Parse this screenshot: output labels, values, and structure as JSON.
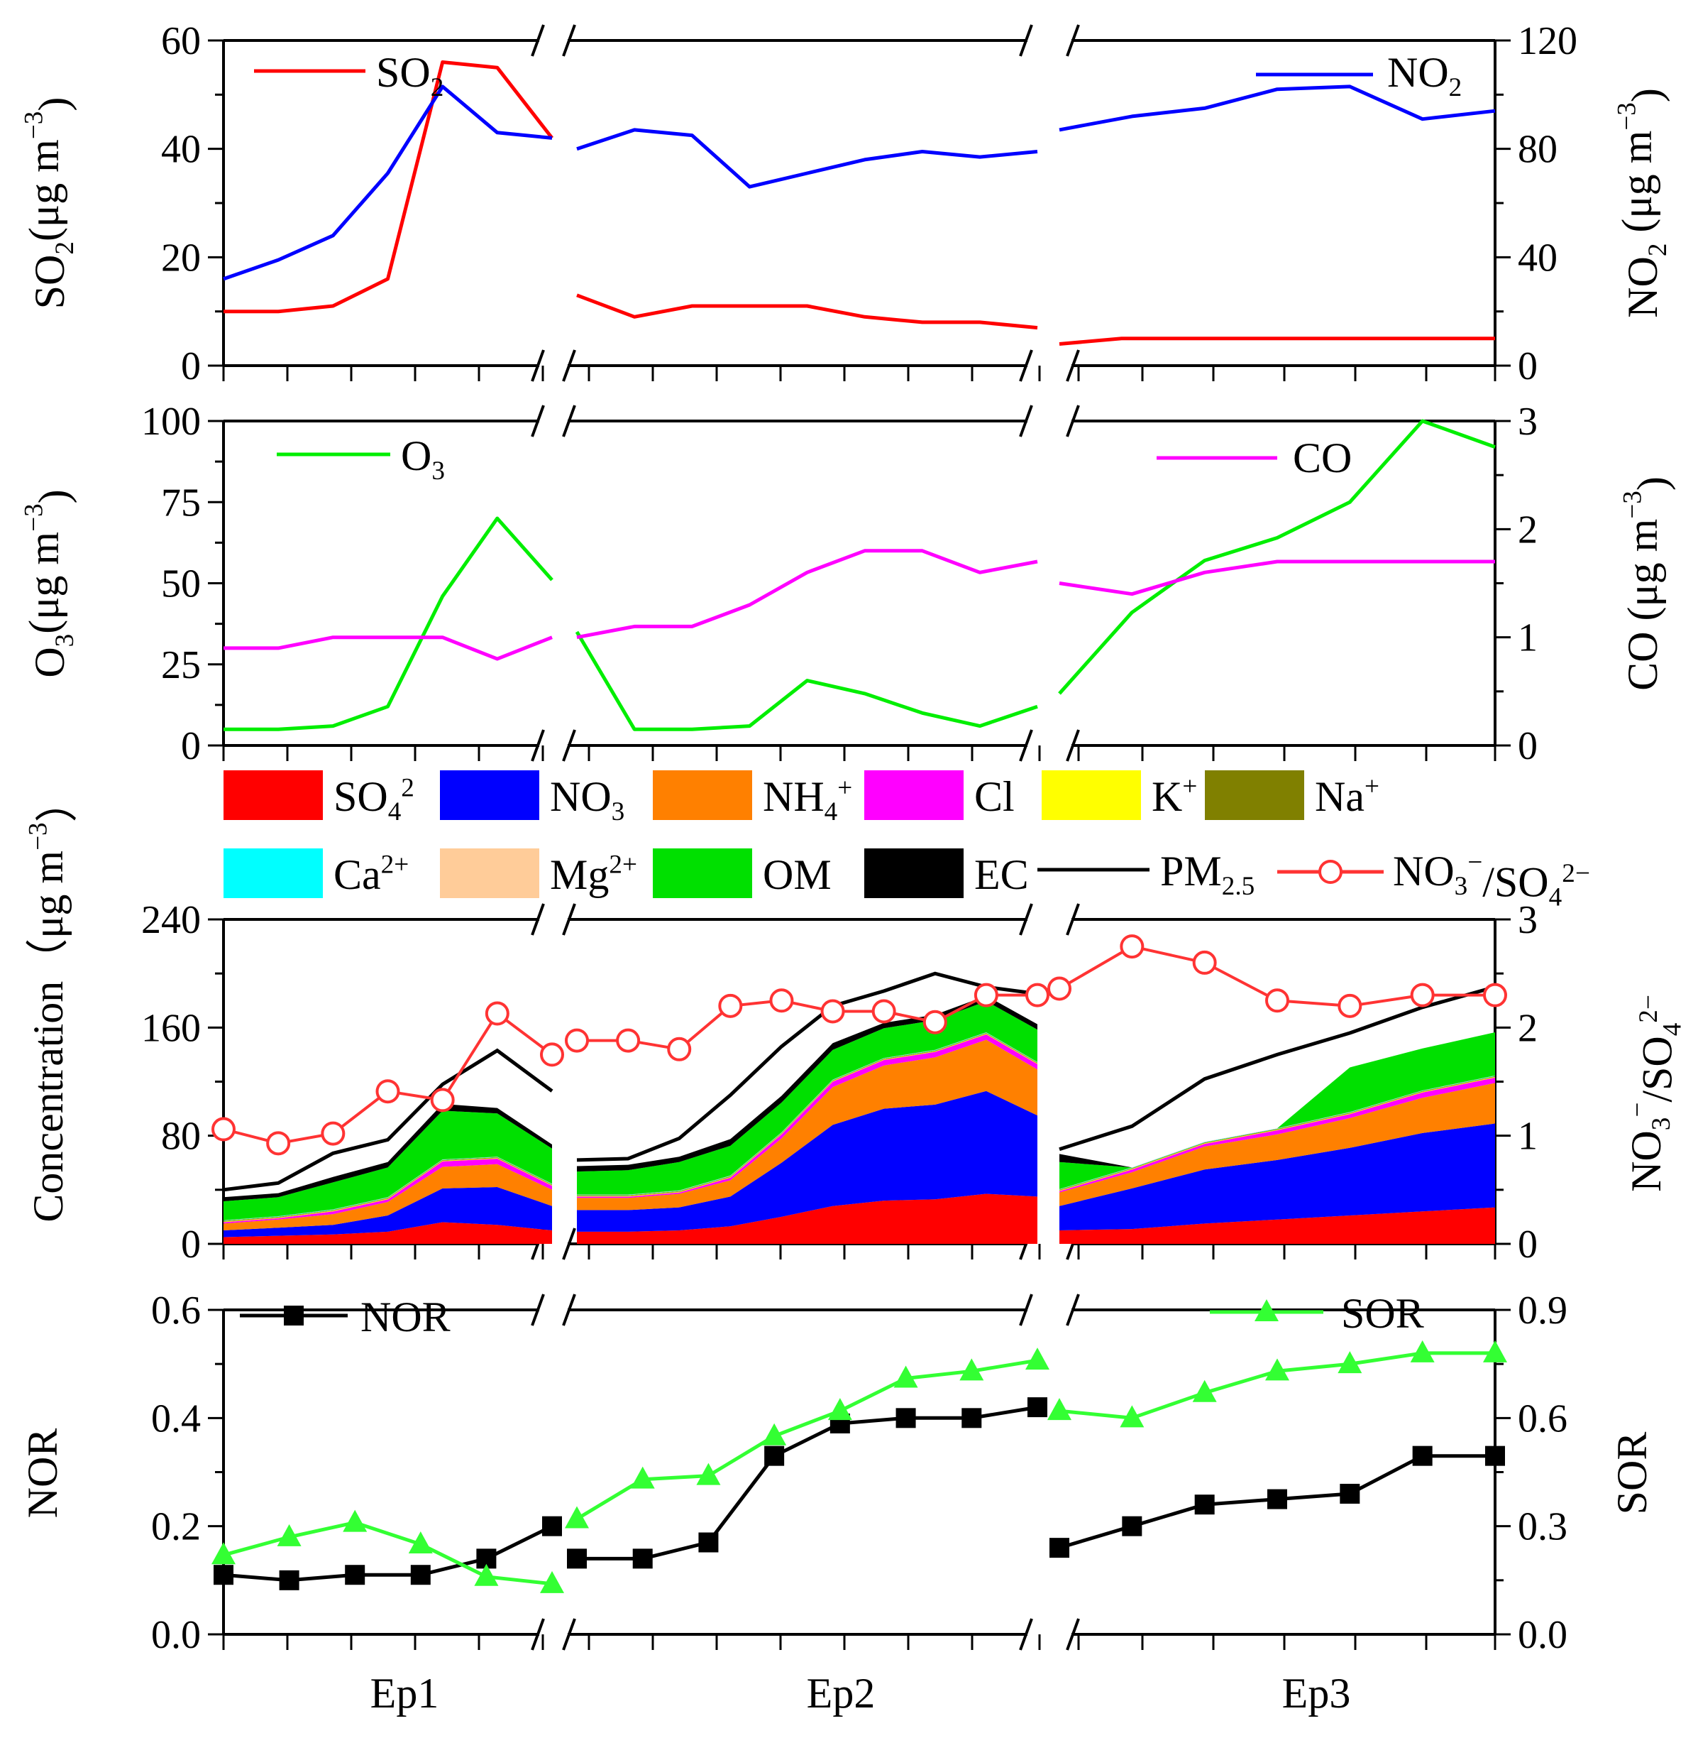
{
  "colors": {
    "so2": "#ff0000",
    "no2": "#0000ff",
    "o3": "#00ee00",
    "co": "#ff00ff",
    "so4": "#ff0000",
    "no3": "#0000ff",
    "nh4": "#ff8000",
    "cl": "#ff00ff",
    "k": "#ffff00",
    "na": "#808000",
    "ca": "#00ffff",
    "mg": "#ffcc99",
    "om": "#00e000",
    "ec": "#000000",
    "pm25": "#000000",
    "ratio": "#ff3333",
    "nor": "#000000",
    "sor": "#33ff33"
  },
  "categories": [
    "Ep1",
    "Ep2",
    "Ep3"
  ],
  "chart_data": [
    {
      "type": "line",
      "panel": "gas-so2-no2",
      "y_left": {
        "label": "SO2(μg m−3)",
        "ticks": [
          "0",
          "20",
          "40",
          "60"
        ],
        "range": [
          0,
          60
        ]
      },
      "y_right": {
        "label": "NO2 (μg m−3)",
        "ticks": [
          "0",
          "40",
          "80",
          "120"
        ],
        "range": [
          0,
          120
        ]
      },
      "series": [
        {
          "name": "SO2",
          "axis": "left",
          "segments": [
            [
              10,
              10,
              11,
              16,
              56,
              55,
              42
            ],
            [
              13,
              9,
              11,
              11,
              11,
              9,
              8,
              8,
              7
            ],
            [
              4,
              5,
              5,
              5,
              5,
              5,
              5,
              5
            ]
          ]
        },
        {
          "name": "NO2",
          "axis": "right",
          "segments": [
            [
              32,
              39,
              48,
              71,
              103,
              86,
              84
            ],
            [
              80,
              87,
              85,
              66,
              71,
              76,
              79,
              77,
              79
            ],
            [
              87,
              92,
              95,
              102,
              103,
              91,
              94
            ]
          ]
        }
      ],
      "legend": [
        {
          "label": "SO",
          "sub": "2"
        },
        {
          "label": "NO",
          "sub": "2"
        }
      ]
    },
    {
      "type": "line",
      "panel": "gas-o3-co",
      "y_left": {
        "label": "O3(μg m−3)",
        "ticks": [
          "0",
          "25",
          "50",
          "75",
          "100"
        ],
        "range": [
          0,
          100
        ]
      },
      "y_right": {
        "label": "CO (μg m−3)",
        "ticks": [
          "0",
          "1",
          "2",
          "3"
        ],
        "range": [
          0,
          3
        ]
      },
      "series": [
        {
          "name": "O3",
          "axis": "left",
          "segments": [
            [
              5,
              5,
              6,
              12,
              46,
              70,
              51
            ],
            [
              35,
              5,
              5,
              6,
              20,
              16,
              10,
              6,
              12
            ],
            [
              16,
              41,
              57,
              64,
              75,
              100,
              92
            ]
          ]
        },
        {
          "name": "CO",
          "axis": "right",
          "segments": [
            [
              0.9,
              0.9,
              1.0,
              1.0,
              1.0,
              0.8,
              1.0
            ],
            [
              1.0,
              1.1,
              1.1,
              1.3,
              1.6,
              1.8,
              1.8,
              1.6,
              1.7
            ],
            [
              1.5,
              1.4,
              1.6,
              1.7,
              1.7,
              1.7,
              1.7
            ]
          ]
        }
      ],
      "legend": [
        {
          "label": "O",
          "sub": "3"
        },
        {
          "label": "CO",
          "sub": ""
        }
      ]
    },
    {
      "type": "area",
      "panel": "composition",
      "y_left": {
        "label": "Concentration（μg m−3）",
        "ticks": [
          "0",
          "80",
          "160",
          "240"
        ],
        "range": [
          0,
          240
        ]
      },
      "y_right": {
        "label": "NO3−/SO42−",
        "ticks": [
          "0",
          "1",
          "2",
          "3"
        ],
        "range": [
          0,
          3
        ]
      },
      "legend": [
        {
          "key": "so4",
          "label": "SO",
          "sub": "4",
          "sup": "2"
        },
        {
          "key": "no3",
          "label": "NO",
          "sub": "3",
          "sup": ""
        },
        {
          "key": "nh4",
          "label": "NH",
          "sub": "4",
          "sup": "+"
        },
        {
          "key": "cl",
          "label": "Cl",
          "sub": "",
          "sup": ""
        },
        {
          "key": "k",
          "label": "K",
          "sub": "",
          "sup": "+"
        },
        {
          "key": "na",
          "label": "Na",
          "sub": "",
          "sup": "+"
        },
        {
          "key": "ca",
          "label": "Ca",
          "sub": "",
          "sup": "2+"
        },
        {
          "key": "mg",
          "label": "Mg",
          "sub": "",
          "sup": "2+"
        },
        {
          "key": "om",
          "label": "OM",
          "sub": "",
          "sup": ""
        },
        {
          "key": "ec",
          "label": "EC",
          "sub": "",
          "sup": ""
        },
        {
          "key": "pm25",
          "label": "PM",
          "sub": "2.5",
          "sup": ""
        },
        {
          "key": "ratio",
          "label": "NO",
          "sub": "3",
          "sup": "−",
          "tail": "/SO",
          "tail_sub": "4",
          "tail_sup": "2−"
        }
      ],
      "segments": [
        {
          "so4": [
            5,
            6,
            7,
            9,
            16,
            14,
            10
          ],
          "no3": [
            5,
            6,
            7,
            12,
            25,
            28,
            18
          ],
          "nh4": [
            5,
            6,
            8,
            10,
            16,
            17,
            12
          ],
          "cl": [
            1,
            1,
            2,
            2,
            4,
            4,
            3
          ],
          "k": [
            0.5,
            0.5,
            0.5,
            0.5,
            0.5,
            0.5,
            0.5
          ],
          "na": [
            0.5,
            0.5,
            0.5,
            0.5,
            0.5,
            0.5,
            0.5
          ],
          "ca": [
            0.3,
            0.3,
            0.3,
            0.3,
            0.3,
            0.3,
            0.3
          ],
          "mg": [
            0.2,
            0.2,
            0.2,
            0.2,
            0.2,
            0.2,
            0.2
          ],
          "om": [
            14,
            14,
            20,
            22,
            36,
            32,
            26
          ],
          "ec": [
            3,
            3,
            4,
            4,
            5,
            4,
            3
          ],
          "pm25": [
            40,
            45,
            67,
            77,
            118,
            143,
            113
          ],
          "ratio": [
            1.06,
            0.93,
            1.02,
            1.41,
            1.33,
            2.13,
            1.75
          ]
        },
        {
          "so4": [
            9,
            9,
            10,
            13,
            20,
            28,
            32,
            33,
            37,
            35
          ],
          "no3": [
            16,
            16,
            17,
            22,
            40,
            60,
            68,
            70,
            76,
            60
          ],
          "nh4": [
            9,
            9,
            10,
            12,
            18,
            28,
            32,
            35,
            38,
            34
          ],
          "cl": [
            1,
            1,
            1,
            2,
            3,
            4,
            4,
            4,
            4,
            4
          ],
          "k": [
            0.5,
            0.5,
            0.5,
            0.5,
            0.5,
            0.5,
            0.5,
            0.5,
            0.5,
            0.5
          ],
          "na": [
            0.5,
            0.5,
            0.5,
            0.5,
            0.5,
            0.5,
            0.5,
            0.5,
            0.5,
            0.5
          ],
          "ca": [
            0.3,
            0.3,
            0.3,
            0.3,
            0.3,
            0.3,
            0.3,
            0.3,
            0.3,
            0.3
          ],
          "mg": [
            0.2,
            0.2,
            0.2,
            0.2,
            0.2,
            0.2,
            0.2,
            0.2,
            0.2,
            0.2
          ],
          "om": [
            17,
            18,
            21,
            22,
            22,
            22,
            22,
            22,
            23,
            24
          ],
          "ec": [
            4,
            4,
            4,
            5,
            5,
            5,
            4,
            4,
            4,
            4
          ],
          "pm25": [
            62,
            63,
            78,
            110,
            146,
            176,
            187,
            200,
            190,
            185
          ],
          "ratio": [
            1.88,
            1.88,
            1.8,
            2.2,
            2.25,
            2.15,
            2.15,
            2.05,
            2.3,
            2.3
          ]
        },
        {
          "so4": [
            10,
            11,
            15,
            18,
            21,
            24,
            27
          ],
          "no3": [
            18,
            30,
            40,
            44,
            50,
            58,
            62
          ],
          "nh4": [
            10,
            12,
            17,
            19,
            22,
            26,
            30
          ],
          "cl": [
            1,
            2,
            2,
            3,
            3,
            4,
            4
          ],
          "k": [
            0.5,
            0.5,
            0.5,
            0.5,
            0.5,
            0.5,
            0.5
          ],
          "na": [
            0.5,
            0.5,
            0.5,
            0.5,
            0.5,
            0.5,
            0.5
          ],
          "ca": [
            0.3,
            0.3,
            0.3,
            0.3,
            0.3,
            0.3,
            0.3
          ],
          "mg": [
            0.2,
            0.2,
            0.2,
            0.2,
            0.2,
            0.2,
            0.2
          ],
          "om": [
            20,
            0,
            0,
            0,
            33,
            31,
            32
          ],
          "ec": [
            6,
            0,
            0,
            0,
            0,
            0,
            0
          ],
          "pm25": [
            70,
            87,
            122,
            140,
            156,
            175,
            190
          ],
          "ratio": [
            2.36,
            2.75,
            2.6,
            2.25,
            2.2,
            2.3,
            2.3
          ]
        }
      ]
    },
    {
      "type": "line",
      "panel": "nor-sor",
      "y_left": {
        "label": "NOR",
        "ticks": [
          "0.0",
          "0.2",
          "0.4",
          "0.6"
        ],
        "range": [
          0,
          0.6
        ]
      },
      "y_right": {
        "label": "SOR",
        "ticks": [
          "0.0",
          "0.3",
          "0.6",
          "0.9"
        ],
        "range": [
          0,
          0.9
        ]
      },
      "series": [
        {
          "name": "NOR",
          "axis": "left",
          "marker": "square",
          "segments": [
            [
              0.11,
              0.1,
              0.11,
              0.11,
              0.14,
              0.2
            ],
            [
              0.14,
              0.14,
              0.17,
              0.33,
              0.39,
              0.4,
              0.4,
              0.42
            ],
            [
              0.16,
              0.2,
              0.24,
              0.25,
              0.26,
              0.33,
              0.33
            ]
          ]
        },
        {
          "name": "SOR",
          "axis": "right",
          "marker": "triangle",
          "segments": [
            [
              0.22,
              0.27,
              0.31,
              0.25,
              0.16,
              0.14
            ],
            [
              0.32,
              0.43,
              0.44,
              0.55,
              0.62,
              0.71,
              0.73,
              0.76
            ],
            [
              0.62,
              0.6,
              0.67,
              0.73,
              0.75,
              0.78,
              0.78
            ]
          ]
        }
      ],
      "legend": [
        {
          "label": "NOR",
          "sub": ""
        },
        {
          "label": "SOR",
          "sub": ""
        }
      ]
    }
  ]
}
